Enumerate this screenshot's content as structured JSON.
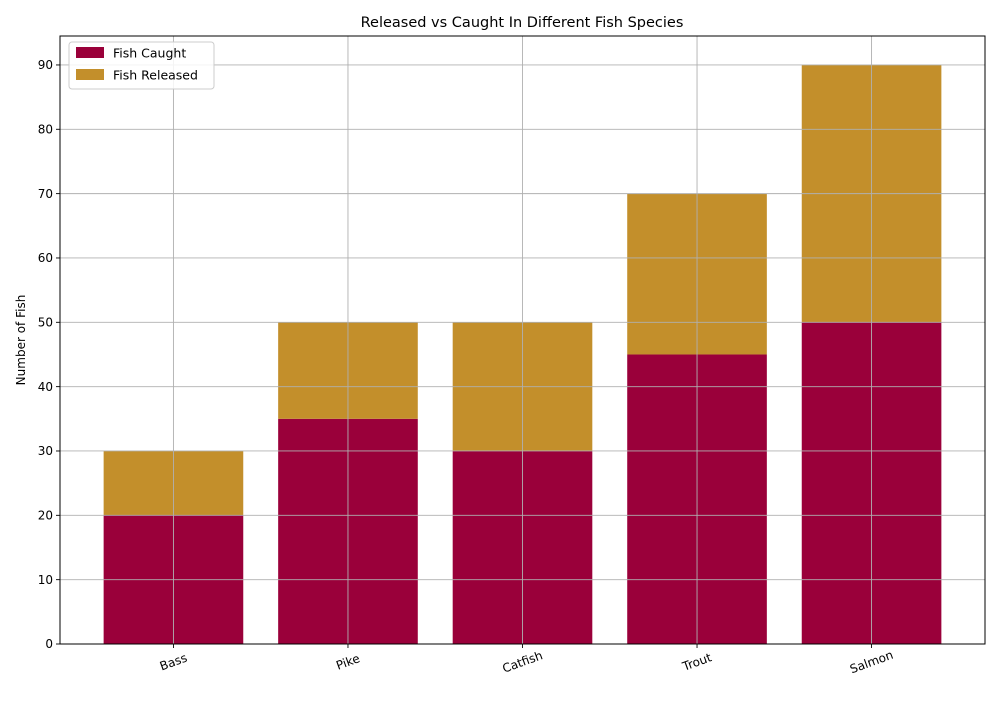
{
  "chart_data": {
    "type": "bar",
    "stacked": true,
    "title": "Released vs Caught In Different Fish Species",
    "xlabel": "",
    "ylabel": "Number of Fish",
    "categories": [
      "Bass",
      "Pike",
      "Catfish",
      "Trout",
      "Salmon"
    ],
    "series": [
      {
        "name": "Fish Caught",
        "color": "#9a003a",
        "values": [
          20,
          35,
          30,
          45,
          50
        ]
      },
      {
        "name": "Fish Released",
        "color": "#c38f2b",
        "values": [
          10,
          15,
          20,
          25,
          40
        ]
      }
    ],
    "ylim": [
      0,
      94.5
    ],
    "yticks": [
      0,
      10,
      20,
      30,
      40,
      50,
      60,
      70,
      80,
      90
    ],
    "grid": true,
    "legend_position": "top-left",
    "xtick_rotation": -20
  }
}
